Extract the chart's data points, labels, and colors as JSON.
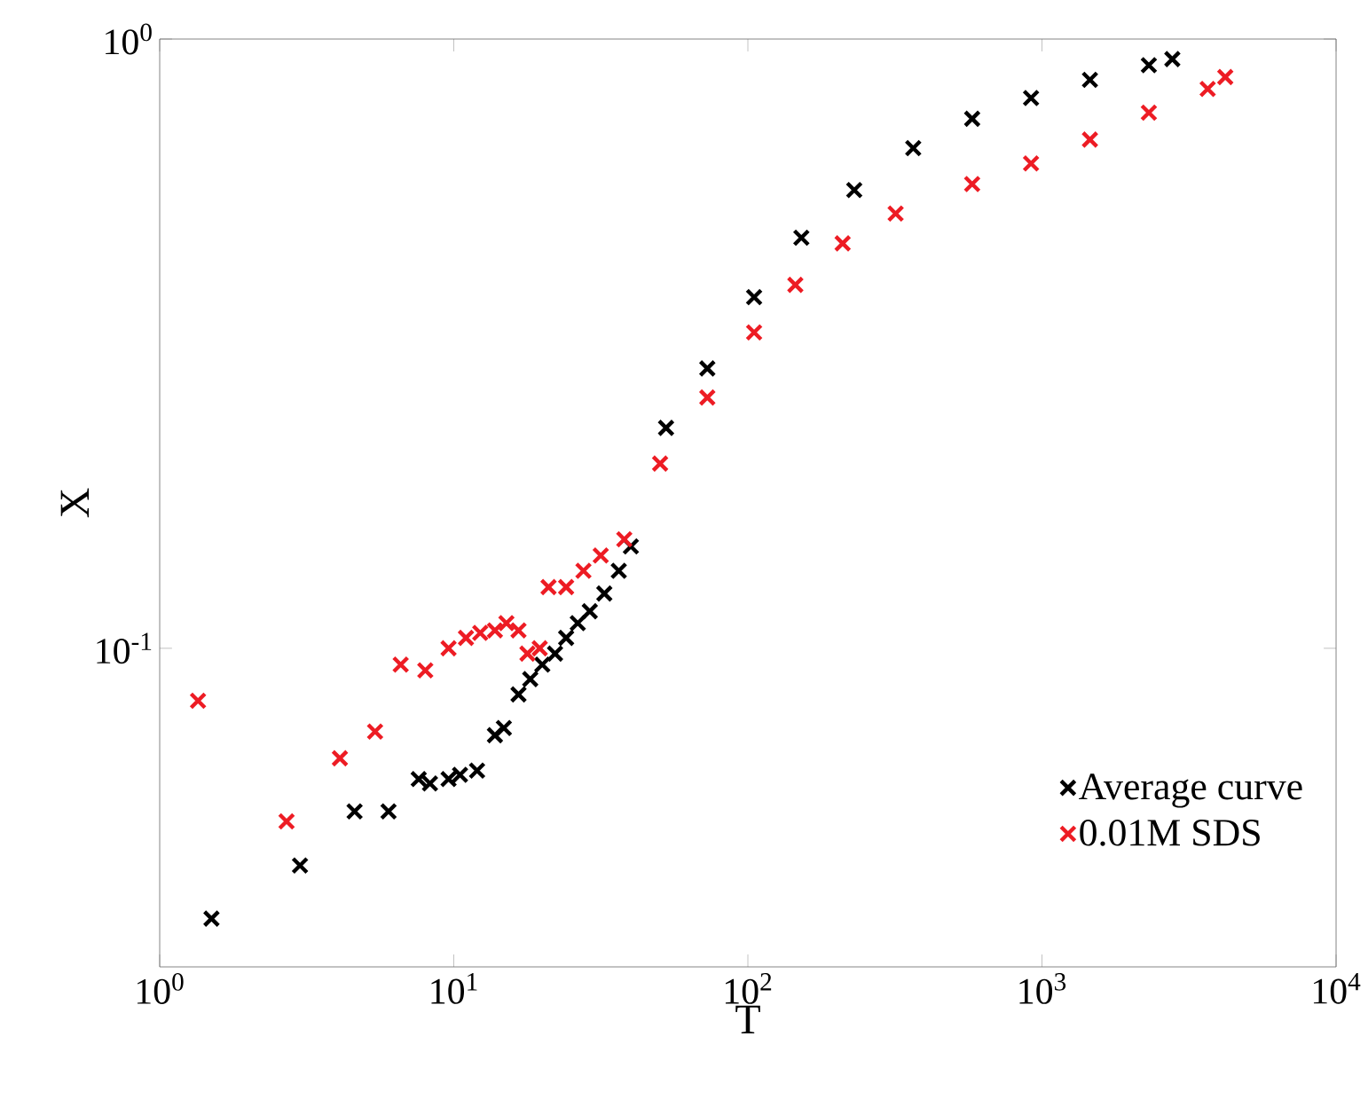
{
  "chart_data": {
    "type": "scatter",
    "xlabel": "T",
    "ylabel": "X",
    "log": "xy",
    "marker": "cross",
    "legend": "bottom right",
    "xlim": [
      1,
      10000
    ],
    "ylim": [
      0.03,
      1
    ],
    "xticks": [
      {
        "value": 1,
        "label": "10$^{0}$"
      },
      {
        "value": 10,
        "label": "10$^{1}$"
      },
      {
        "value": 100,
        "label": "10$^{2}$"
      },
      {
        "value": 1000,
        "label": "10$^{3}$"
      },
      {
        "value": 10000,
        "label": "10$^{4}$"
      }
    ],
    "yticks": [
      {
        "value": 0.1,
        "label": "10$^{-1}$"
      },
      {
        "value": 1,
        "label": "10$^{0}$"
      }
    ],
    "series": [
      {
        "name": "Average curve",
        "color": "#000000",
        "x": [
          1.5,
          3.0,
          4.6,
          6.0,
          7.6,
          8.3,
          9.6,
          10.5,
          12.0,
          13.8,
          14.8,
          16.6,
          18.2,
          20,
          22.1,
          24.1,
          26.4,
          29,
          32.5,
          36.4,
          40,
          52.7,
          72.8,
          105,
          152,
          230,
          365,
          579,
          918,
          1456,
          2309,
          2775
        ],
        "values": [
          0.036,
          0.044,
          0.054,
          0.054,
          0.061,
          0.06,
          0.061,
          0.062,
          0.063,
          0.072,
          0.074,
          0.084,
          0.089,
          0.094,
          0.098,
          0.104,
          0.11,
          0.115,
          0.123,
          0.134,
          0.147,
          0.23,
          0.288,
          0.377,
          0.472,
          0.565,
          0.662,
          0.74,
          0.8,
          0.857,
          0.906,
          0.927
        ]
      },
      {
        "name": "0.01M SDS",
        "color": "#ed1c24",
        "x": [
          1.35,
          2.7,
          4.1,
          5.4,
          6.6,
          8.0,
          9.6,
          11,
          12.3,
          13.8,
          15.1,
          16.6,
          17.8,
          19.6,
          21,
          24.1,
          27.6,
          31.6,
          38,
          50.3,
          72.8,
          105,
          145,
          210,
          318,
          579,
          918,
          1456,
          2309,
          3660,
          4200
        ],
        "values": [
          0.082,
          0.052,
          0.066,
          0.073,
          0.094,
          0.092,
          0.1,
          0.104,
          0.106,
          0.107,
          0.11,
          0.107,
          0.098,
          0.1,
          0.126,
          0.126,
          0.134,
          0.142,
          0.151,
          0.201,
          0.258,
          0.33,
          0.395,
          0.462,
          0.517,
          0.578,
          0.625,
          0.684,
          0.757,
          0.828,
          0.866
        ]
      }
    ]
  }
}
